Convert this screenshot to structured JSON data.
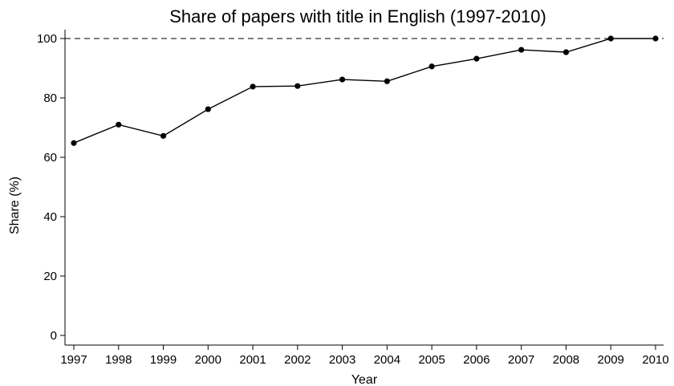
{
  "chart_data": {
    "type": "line",
    "title": "Share of papers with title in English (1997-2010)",
    "xlabel": "Year",
    "ylabel": "Share (%)",
    "x": [
      1997,
      1998,
      1999,
      2000,
      2001,
      2002,
      2003,
      2004,
      2005,
      2006,
      2007,
      2008,
      2009,
      2010
    ],
    "series": [
      {
        "values": [
          64.8,
          71.0,
          67.2,
          76.2,
          83.8,
          84.0,
          86.2,
          85.6,
          90.6,
          93.2,
          96.2,
          95.4,
          100.0,
          100.0
        ]
      }
    ],
    "xticks": [
      "1997",
      "1998",
      "1999",
      "2000",
      "2001",
      "2002",
      "2003",
      "2004",
      "2005",
      "2006",
      "2007",
      "2008",
      "2009",
      "2010"
    ],
    "yticks": [
      0,
      20,
      40,
      60,
      80,
      100
    ],
    "ylim": [
      0,
      100
    ],
    "reference_line": {
      "y": 100,
      "style": "dashed"
    },
    "grid": false,
    "line_color": "#000000",
    "marker_color": "#000000"
  }
}
